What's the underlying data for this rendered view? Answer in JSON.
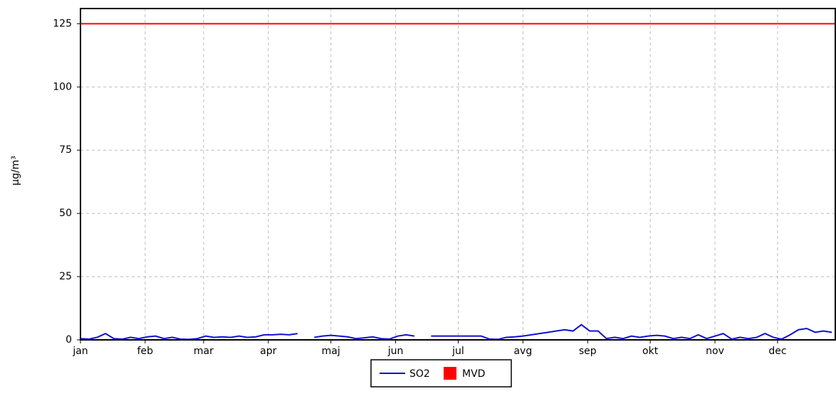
{
  "chart_data": {
    "type": "line",
    "ylabel": "µg/m³",
    "x": [
      0,
      4,
      8,
      12,
      16,
      20,
      24,
      28,
      32,
      36,
      40,
      44,
      48,
      52,
      56,
      60,
      64,
      68,
      72,
      76,
      80,
      84,
      88,
      92,
      96,
      100,
      104,
      108,
      112,
      116,
      120,
      124,
      128,
      132,
      136,
      140,
      144,
      148,
      152,
      156,
      160,
      164,
      168,
      172,
      176,
      180,
      184,
      188,
      192,
      196,
      200,
      204,
      208,
      212,
      216,
      220,
      224,
      228,
      232,
      236,
      240,
      244,
      248,
      252,
      256,
      260,
      264,
      268,
      272,
      276,
      280,
      284,
      288,
      292,
      296,
      300,
      304,
      308,
      312,
      316,
      320,
      324,
      328,
      332,
      336,
      340,
      344,
      348,
      352,
      356,
      360
    ],
    "series": [
      {
        "name": "SO2",
        "color": "#1010d0",
        "values": [
          0.5,
          0.3,
          1,
          2.5,
          0.5,
          0.3,
          1,
          0.5,
          1.2,
          1.5,
          0.5,
          1,
          0.3,
          0.2,
          0.5,
          1.5,
          1,
          1.2,
          1,
          1.5,
          1,
          1.2,
          2,
          2,
          2.2,
          2,
          2.5,
          null,
          1,
          1.5,
          1.8,
          1.5,
          1.2,
          0.5,
          0.8,
          1.2,
          0.5,
          0.3,
          1.5,
          2,
          1.5,
          null,
          1.5,
          1.5,
          1.5,
          1.5,
          1.5,
          1.5,
          1.5,
          0.3,
          0.2,
          1,
          1.2,
          1.5,
          2,
          2.5,
          3,
          3.5,
          4,
          3.5,
          6,
          3.5,
          3.5,
          0.5,
          1,
          0.5,
          1.5,
          1,
          1.5,
          1.8,
          1.5,
          0.5,
          1,
          0.5,
          2,
          0.5,
          1.5,
          2.5,
          0.3,
          1,
          0.5,
          1,
          2.5,
          1,
          0.3,
          2,
          4,
          4.5,
          3,
          3.5,
          3
        ]
      }
    ],
    "threshold": {
      "name": "MVD",
      "color": "#ff0000",
      "value": 125
    },
    "xlim": [
      0,
      362
    ],
    "xticks": [
      {
        "value": 0,
        "label": "jan"
      },
      {
        "value": 31,
        "label": "feb"
      },
      {
        "value": 59,
        "label": "mar"
      },
      {
        "value": 90,
        "label": "apr"
      },
      {
        "value": 120,
        "label": "maj"
      },
      {
        "value": 151,
        "label": "jun"
      },
      {
        "value": 181,
        "label": "jul"
      },
      {
        "value": 212,
        "label": "avg"
      },
      {
        "value": 243,
        "label": "sep"
      },
      {
        "value": 273,
        "label": "okt"
      },
      {
        "value": 304,
        "label": "nov"
      },
      {
        "value": 334,
        "label": "dec"
      }
    ],
    "ylim": [
      0,
      131
    ],
    "yticks": [
      0,
      25,
      50,
      75,
      100,
      125
    ],
    "grid": true
  }
}
